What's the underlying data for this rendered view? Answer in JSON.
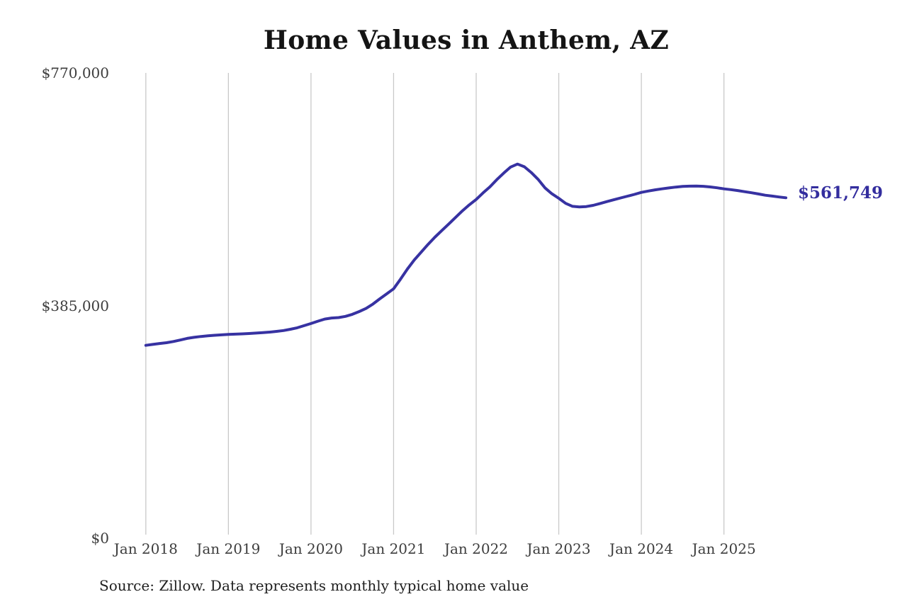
{
  "page": {
    "source_note": "Source: Zillow. Data represents monthly typical home value"
  },
  "colors": {
    "line": "#3732a2",
    "grid": "#c9c9c9",
    "axis_text": "#3d3d3d",
    "title_text": "#141414",
    "latest_label": "#332d9e",
    "background": "#ffffff"
  },
  "chart_data": {
    "type": "line",
    "title": "Home Values in Anthem, AZ",
    "xlabel": "",
    "ylabel": "",
    "x_range": {
      "start": "2018-01",
      "end": "2025-10",
      "freq": "monthly"
    },
    "x_tick_labels": [
      "Jan 2018",
      "Jan 2019",
      "Jan 2020",
      "Jan 2021",
      "Jan 2022",
      "Jan 2023",
      "Jan 2024",
      "Jan 2025"
    ],
    "y_tick_labels": [
      "$0",
      "$385,000",
      "$770,000"
    ],
    "y_tick_values": [
      0,
      385000,
      770000
    ],
    "ylim": [
      0,
      770000
    ],
    "grid": "vertical-only",
    "legend": "none",
    "latest_value": 561749,
    "latest_value_label": "$561,749",
    "series": [
      {
        "name": "Typical home value (USD)",
        "values": [
          315700,
          317200,
          318800,
          320100,
          322000,
          324500,
          327200,
          329000,
          330400,
          331500,
          332400,
          333200,
          333900,
          334300,
          334800,
          335400,
          336100,
          336900,
          337800,
          339000,
          340300,
          342500,
          345000,
          348500,
          352000,
          356000,
          359500,
          361300,
          362000,
          364000,
          367400,
          372000,
          377200,
          384500,
          393300,
          401500,
          410000,
          426000,
          442900,
          458000,
          471000,
          484000,
          496000,
          507000,
          518000,
          529000,
          540100,
          550000,
          559000,
          570000,
          580000,
          592000,
          603000,
          613000,
          618000,
          613500,
          604000,
          592500,
          578300,
          568500,
          561000,
          552500,
          547500,
          546500,
          547200,
          549200,
          552200,
          555400,
          558500,
          561500,
          564500,
          567500,
          570800,
          573000,
          575000,
          576700,
          578200,
          579600,
          580700,
          581200,
          581300,
          580900,
          579900,
          578500,
          576700,
          575400,
          573800,
          572000,
          570200,
          568200,
          566100,
          564600,
          563100,
          561749
        ]
      }
    ]
  }
}
